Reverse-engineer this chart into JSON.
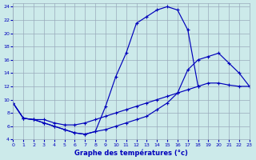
{
  "title": "Graphe des températures (°c)",
  "bg_color": "#cceaea",
  "grid_color": "#99aabb",
  "line_color": "#0000bb",
  "xlim": [
    0,
    23
  ],
  "ylim": [
    4,
    24.5
  ],
  "xticks": [
    0,
    1,
    2,
    3,
    4,
    5,
    6,
    7,
    8,
    9,
    10,
    11,
    12,
    13,
    14,
    15,
    16,
    17,
    18,
    19,
    20,
    21,
    22,
    23
  ],
  "yticks": [
    4,
    6,
    8,
    10,
    12,
    14,
    16,
    18,
    20,
    22,
    24
  ],
  "hours_top": [
    0,
    1,
    2,
    3,
    4,
    5,
    6,
    7,
    8,
    9,
    10,
    11,
    12,
    13,
    14,
    15,
    16,
    17,
    18
  ],
  "curve_top": [
    9.5,
    7.2,
    7.0,
    6.5,
    6.0,
    5.5,
    5.0,
    4.8,
    5.2,
    9.0,
    13.5,
    17.0,
    21.5,
    22.5,
    23.5,
    24.0,
    23.5,
    20.5,
    12.0
  ],
  "hours_mid": [
    0,
    1,
    2,
    3,
    4,
    5,
    6,
    7,
    8,
    9,
    10,
    11,
    12,
    13,
    14,
    15,
    16,
    17,
    18,
    19,
    20,
    21,
    22,
    23
  ],
  "curve_mid": [
    9.5,
    7.2,
    7.0,
    7.0,
    6.5,
    6.2,
    6.2,
    6.5,
    7.0,
    7.5,
    8.0,
    8.5,
    9.0,
    9.5,
    10.0,
    10.5,
    11.0,
    11.5,
    12.0,
    12.5,
    12.5,
    12.2,
    12.0,
    12.0
  ],
  "hours_bot": [
    0,
    1,
    2,
    3,
    4,
    5,
    6,
    7,
    8,
    9,
    10,
    11,
    12,
    13,
    14,
    15,
    16,
    17,
    18,
    19,
    20,
    21,
    22,
    23
  ],
  "curve_bot": [
    9.5,
    7.2,
    7.0,
    6.5,
    6.0,
    5.5,
    5.0,
    4.8,
    5.2,
    5.5,
    6.0,
    6.5,
    7.0,
    7.5,
    8.5,
    9.5,
    11.0,
    14.5,
    16.0,
    16.5,
    17.0,
    15.5,
    14.0,
    12.0
  ]
}
